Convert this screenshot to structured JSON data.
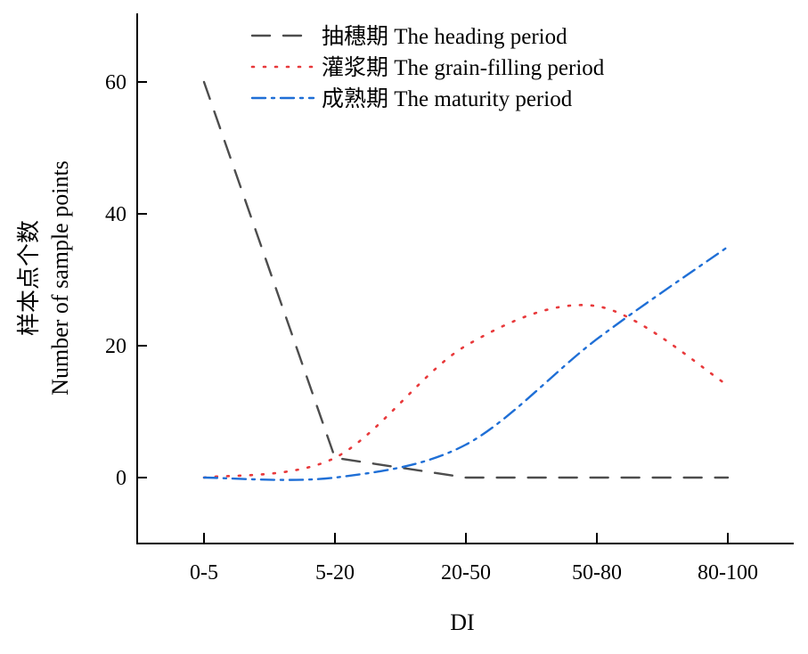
{
  "chart_data": {
    "type": "line",
    "title": "",
    "xlabel": "DI",
    "ylabel": [
      "样本点个数",
      "Number of sample points"
    ],
    "categories": [
      "0-5",
      "5-20",
      "20-50",
      "50-80",
      "80-100"
    ],
    "ylim": [
      -10,
      70
    ],
    "yticks": [
      0,
      20,
      40,
      60
    ],
    "grid": false,
    "legend_position": "top",
    "series": [
      {
        "name": "抽穗期 The heading period",
        "values": [
          60,
          3,
          0,
          0,
          0
        ],
        "color": "#4d4d4d",
        "style": "dashed"
      },
      {
        "name": "灌浆期 The grain-filling period",
        "values": [
          0,
          3,
          20,
          26,
          14
        ],
        "color": "#e8393b",
        "style": "dotted"
      },
      {
        "name": "成熟期 The maturity period",
        "values": [
          0,
          0,
          5,
          21,
          35
        ],
        "color": "#1f6fd6",
        "style": "dash-dot"
      }
    ]
  }
}
